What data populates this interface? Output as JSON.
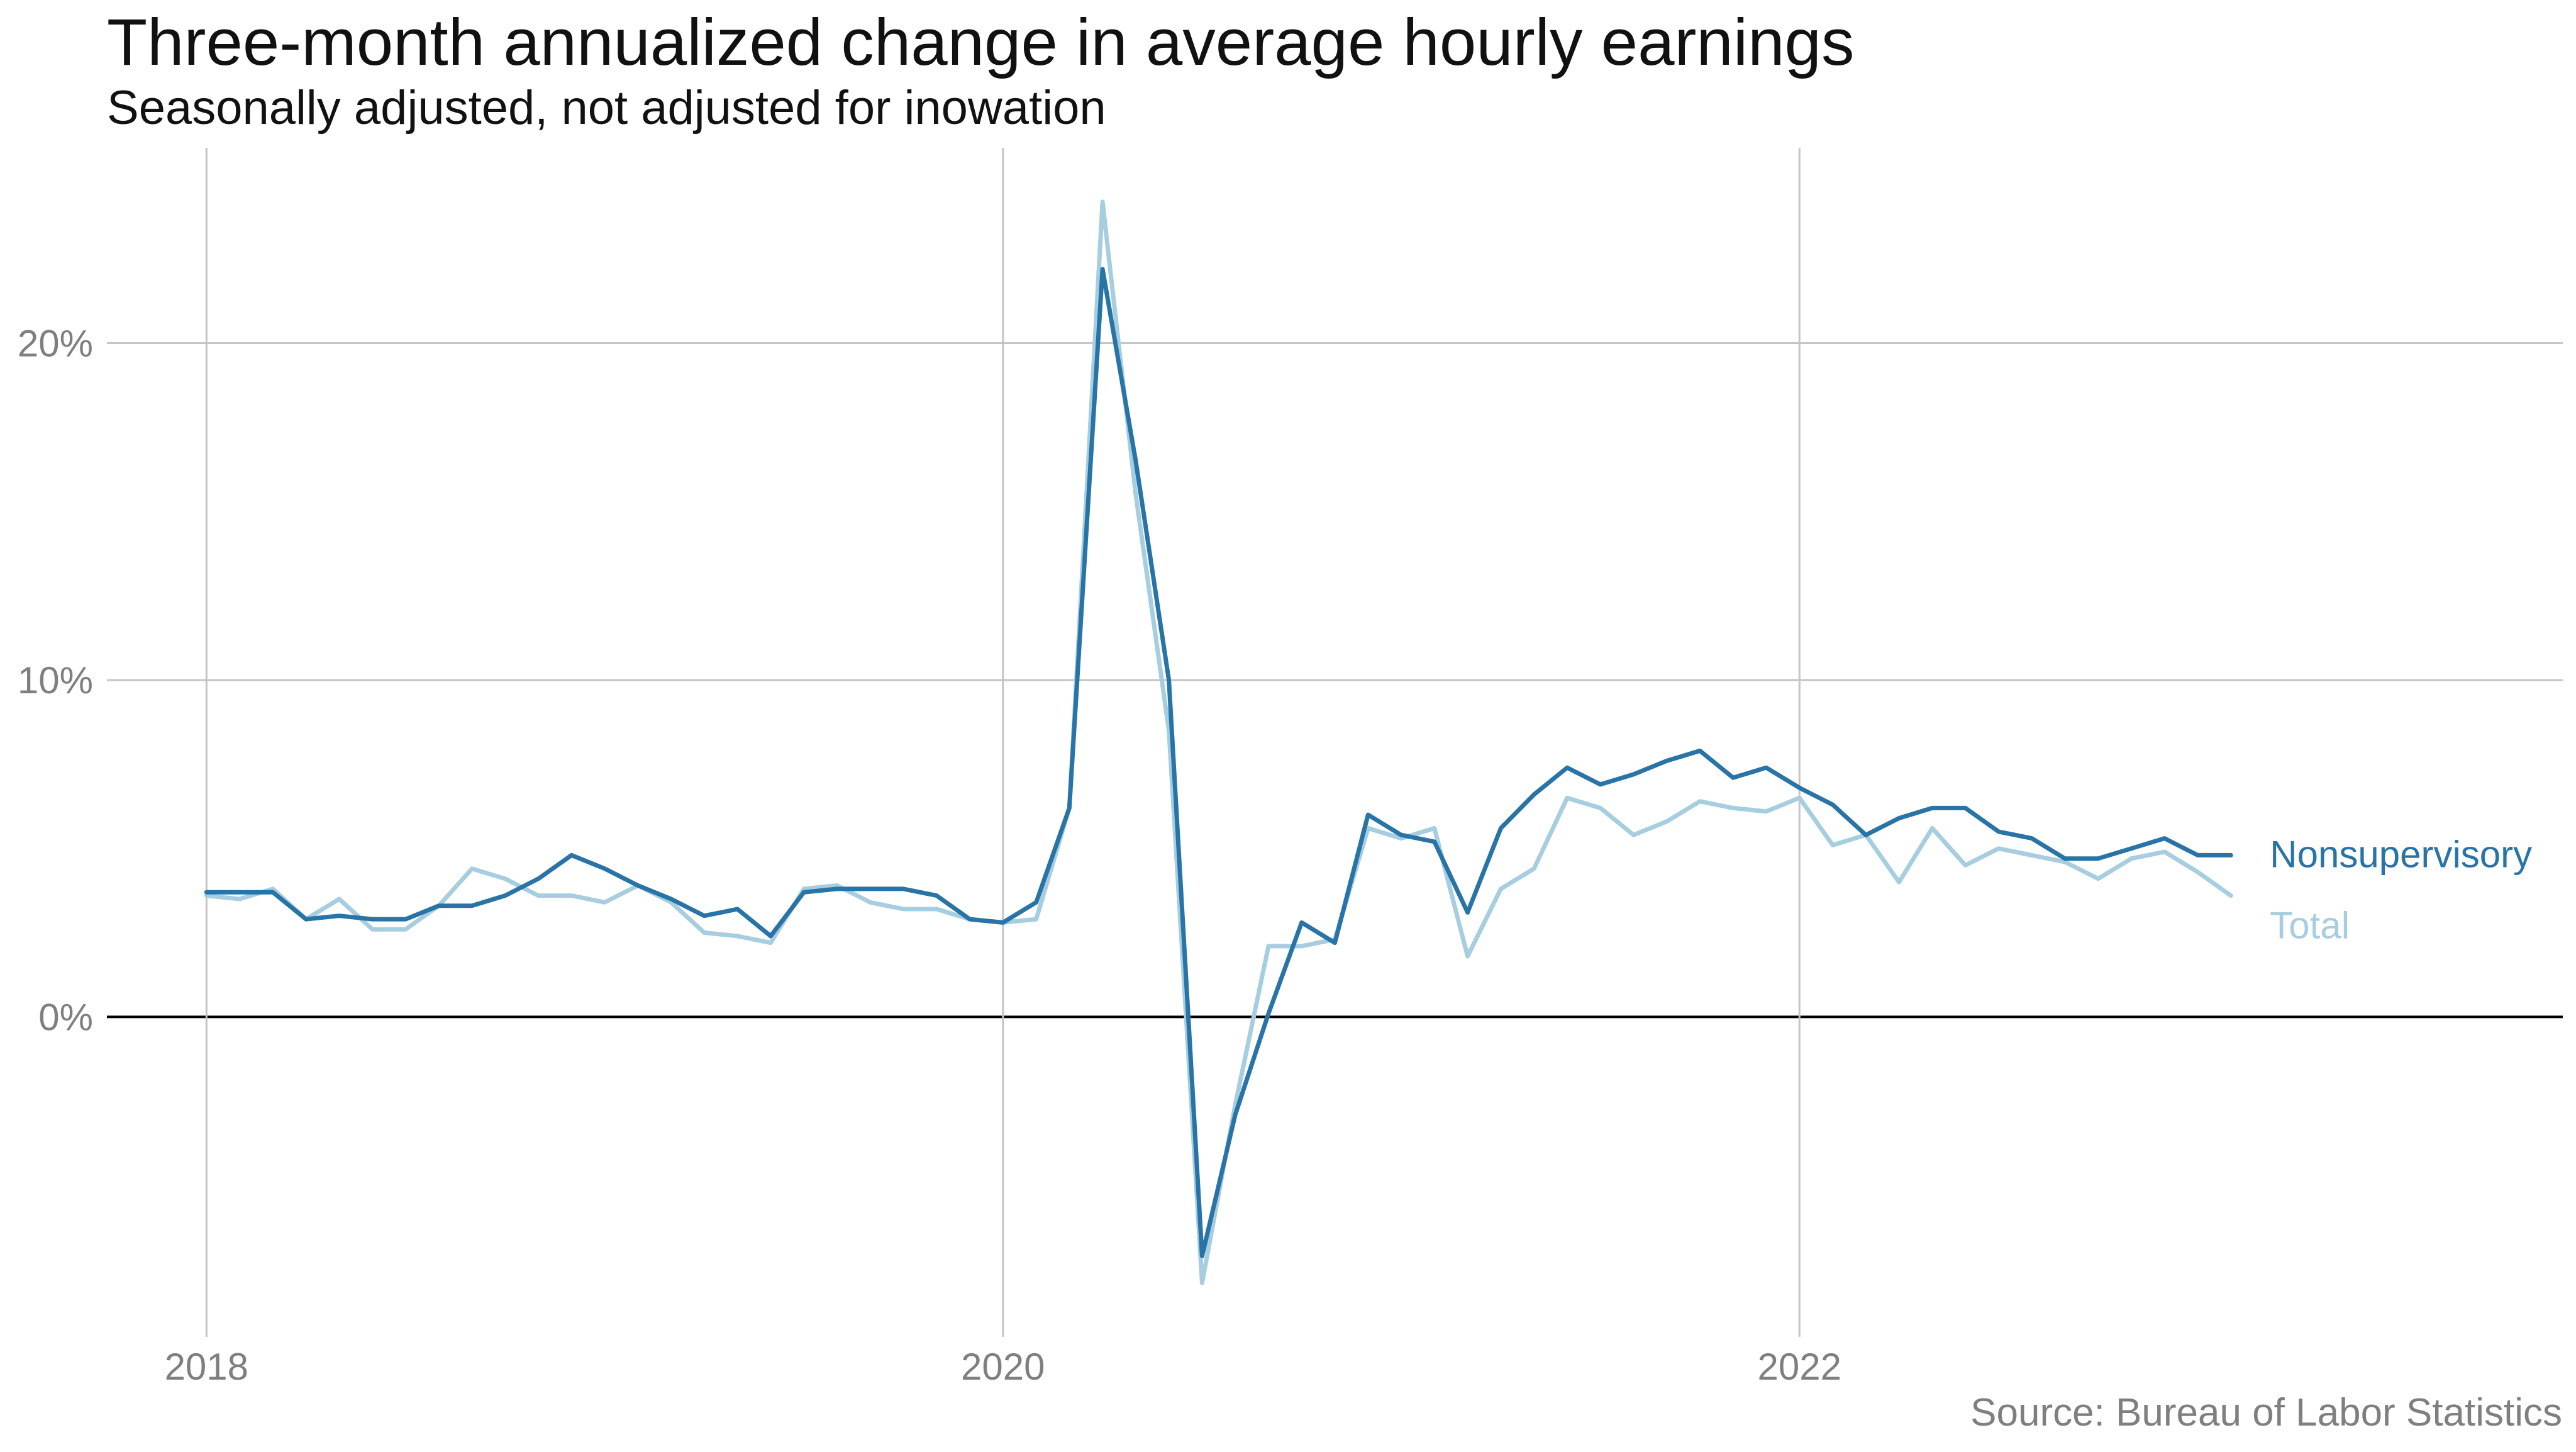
{
  "chart_data": {
    "type": "line",
    "title": "Three-month annualized change in average hourly earnings",
    "subtitle": "Seasonally adjusted, not adjusted for inowation",
    "source": "Source: Bureau of Labor Statistics",
    "xlabel": "",
    "ylabel": "",
    "x_ticks": [
      {
        "value": "2018-01",
        "label": "2018"
      },
      {
        "value": "2020-01",
        "label": "2020"
      },
      {
        "value": "2022-01",
        "label": "2022"
      }
    ],
    "y_ticks": [
      {
        "value": 0,
        "label": "0%"
      },
      {
        "value": 10,
        "label": "10%"
      },
      {
        "value": 20,
        "label": "20%"
      }
    ],
    "xlim": [
      "2017-10",
      "2023-12"
    ],
    "ylim": [
      -9.5,
      25.8
    ],
    "grid": true,
    "legend": "direct-labels-right",
    "x": [
      "2018-01",
      "2018-02",
      "2018-03",
      "2018-04",
      "2018-05",
      "2018-06",
      "2018-07",
      "2018-08",
      "2018-09",
      "2018-10",
      "2018-11",
      "2018-12",
      "2019-01",
      "2019-02",
      "2019-03",
      "2019-04",
      "2019-05",
      "2019-06",
      "2019-07",
      "2019-08",
      "2019-09",
      "2019-10",
      "2019-11",
      "2019-12",
      "2020-01",
      "2020-02",
      "2020-03",
      "2020-04",
      "2020-05",
      "2020-06",
      "2020-07",
      "2020-08",
      "2020-09",
      "2020-10",
      "2020-11",
      "2020-12",
      "2021-01",
      "2021-02",
      "2021-03",
      "2021-04",
      "2021-05",
      "2021-06",
      "2021-07",
      "2021-08",
      "2021-09",
      "2021-10",
      "2021-11",
      "2021-12",
      "2022-01",
      "2022-02",
      "2022-03",
      "2022-04",
      "2022-05",
      "2022-06",
      "2022-07",
      "2022-08",
      "2022-09",
      "2022-10",
      "2022-11",
      "2022-12",
      "2023-01",
      "2023-02",
      "2023-03"
    ],
    "series": [
      {
        "name": "Nonsupervisory",
        "color": "#2874a6",
        "values": [
          3.7,
          3.7,
          3.7,
          2.9,
          3.0,
          2.9,
          2.9,
          3.3,
          3.3,
          3.6,
          4.1,
          4.8,
          4.4,
          3.9,
          3.5,
          3.0,
          3.2,
          2.4,
          3.7,
          3.8,
          3.8,
          3.8,
          3.6,
          2.9,
          2.8,
          3.4,
          6.2,
          22.2,
          16.5,
          10.0,
          -7.1,
          -2.9,
          0.1,
          2.8,
          2.2,
          6.0,
          5.4,
          5.2,
          3.1,
          5.6,
          6.6,
          7.4,
          6.9,
          7.2,
          7.6,
          7.9,
          7.1,
          7.4,
          6.8,
          6.3,
          5.4,
          5.9,
          6.2,
          6.2,
          5.5,
          5.3,
          4.7,
          4.7,
          5.0,
          5.3,
          4.8,
          4.8,
          null
        ]
      },
      {
        "name": "Total",
        "color": "#a6cde0",
        "values": [
          3.6,
          3.5,
          3.8,
          2.9,
          3.5,
          2.6,
          2.6,
          3.3,
          4.4,
          4.1,
          3.6,
          3.6,
          3.4,
          3.9,
          3.4,
          2.5,
          2.4,
          2.2,
          3.8,
          3.9,
          3.4,
          3.2,
          3.2,
          2.9,
          2.8,
          2.9,
          6.2,
          24.2,
          15.5,
          8.5,
          -7.9,
          -2.6,
          2.1,
          2.1,
          2.3,
          5.6,
          5.3,
          5.6,
          1.8,
          3.8,
          4.4,
          6.5,
          6.2,
          5.4,
          5.8,
          6.4,
          6.2,
          6.1,
          6.5,
          5.1,
          5.4,
          4.0,
          5.6,
          4.5,
          5.0,
          4.8,
          4.6,
          4.1,
          4.7,
          4.9,
          4.3,
          3.6,
          null
        ]
      }
    ]
  }
}
